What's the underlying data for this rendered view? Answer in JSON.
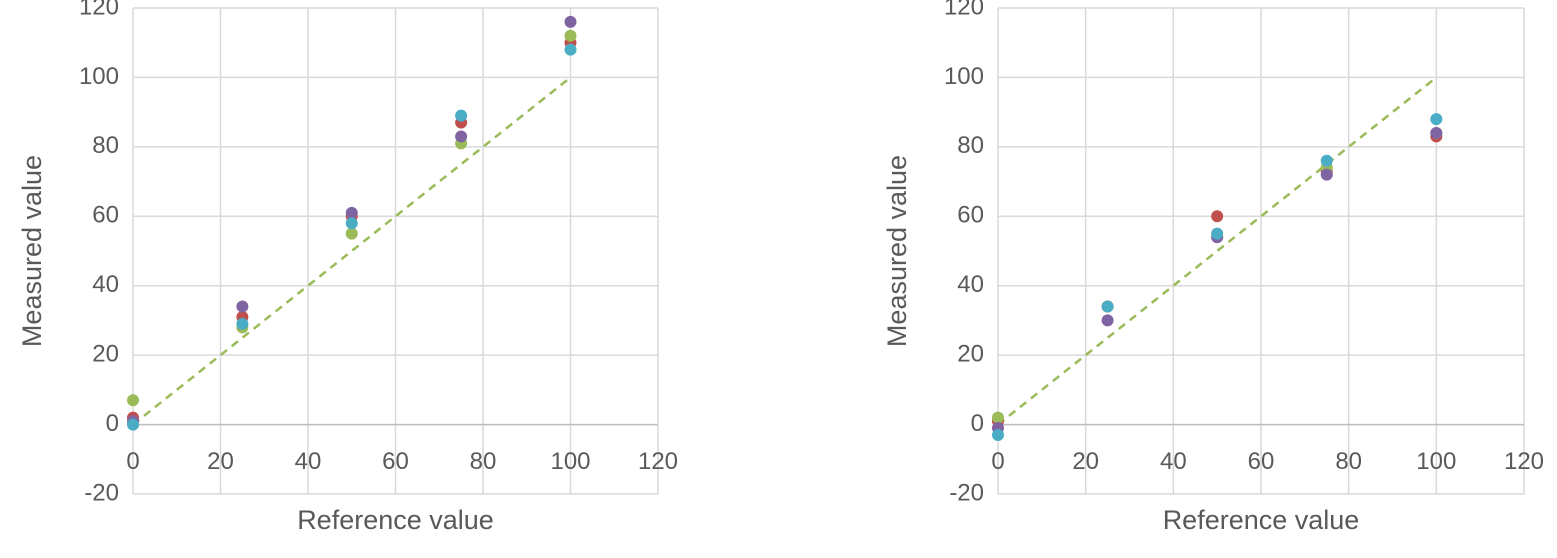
{
  "chart_data": [
    {
      "type": "scatter",
      "xlabel": "Reference value",
      "ylabel": "Measured value",
      "x": [
        0,
        25,
        50,
        75,
        100
      ],
      "series": [
        {
          "color": "#c0504d",
          "values": [
            2,
            31,
            60,
            87,
            110
          ]
        },
        {
          "color": "#9bbb59",
          "values": [
            7,
            28,
            55,
            81,
            112
          ]
        },
        {
          "color": "#8064a2",
          "values": [
            1,
            34,
            61,
            83,
            116
          ]
        },
        {
          "color": "#4bacc6",
          "values": [
            0,
            29,
            58,
            89,
            108
          ]
        }
      ],
      "reference_line": {
        "x": [
          0,
          100
        ],
        "values": [
          0,
          100
        ],
        "color": "#9bbb59",
        "dashed": true
      },
      "xlim": [
        0,
        120
      ],
      "xticks": [
        0,
        20,
        40,
        60,
        80,
        100,
        120
      ],
      "ylim": [
        -20,
        120
      ],
      "yticks": [
        -20,
        0,
        20,
        40,
        60,
        80,
        100,
        120
      ],
      "grid": true
    },
    {
      "type": "scatter",
      "xlabel": "Reference value",
      "ylabel": "Measured value",
      "x": [
        0,
        25,
        50,
        75,
        100
      ],
      "series": [
        {
          "color": "#c0504d",
          "values": [
            1,
            34,
            60,
            73,
            83
          ]
        },
        {
          "color": "#9bbb59",
          "values": [
            2,
            34,
            54,
            74,
            84
          ]
        },
        {
          "color": "#8064a2",
          "values": [
            -1,
            30,
            54,
            72,
            84
          ]
        },
        {
          "color": "#4bacc6",
          "values": [
            -3,
            34,
            55,
            76,
            88
          ]
        }
      ],
      "reference_line": {
        "x": [
          0,
          100
        ],
        "values": [
          0,
          100
        ],
        "color": "#9bbb59",
        "dashed": true
      },
      "xlim": [
        0,
        120
      ],
      "xticks": [
        0,
        20,
        40,
        60,
        80,
        100,
        120
      ],
      "ylim": [
        -20,
        120
      ],
      "yticks": [
        -20,
        0,
        20,
        40,
        60,
        80,
        100,
        120
      ],
      "grid": true
    }
  ]
}
